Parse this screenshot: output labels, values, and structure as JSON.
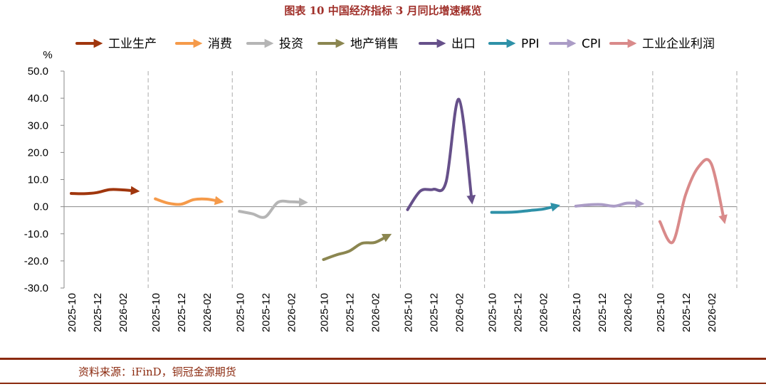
{
  "title": "图表 10  中国经济指标 3 月同比增速概览",
  "source": "资料来源：iFinD，铜冠金源期货",
  "chart_data": {
    "type": "line",
    "y_unit": "%",
    "ylim": [
      -30,
      50
    ],
    "y_ticks": [
      "50.0",
      "40.0",
      "30.0",
      "20.0",
      "10.0",
      "0.0",
      "-10.0",
      "-20.0",
      "-30.0"
    ],
    "panel_x_labels": [
      "2025-10",
      "2025-12",
      "2026-02"
    ],
    "legend_position": "top",
    "series": [
      {
        "name": "工业生产",
        "color": "#a0360d",
        "values": [
          4.9,
          4.8,
          5.2,
          6.3,
          6.2,
          5.8
        ]
      },
      {
        "name": "消费",
        "color": "#f59a4a",
        "values": [
          2.9,
          1.3,
          0.9,
          2.6,
          2.8,
          2.0
        ]
      },
      {
        "name": "投资",
        "color": "#b5b5b5",
        "values": [
          -1.7,
          -2.6,
          -3.8,
          1.6,
          1.8,
          1.6
        ]
      },
      {
        "name": "地产销售",
        "color": "#8b8650",
        "values": [
          -19.5,
          -17.8,
          -16.4,
          -13.5,
          -13.2,
          -10.8
        ]
      },
      {
        "name": "出口",
        "color": "#66508a",
        "values": [
          -1.1,
          5.8,
          6.4,
          9.1,
          39.6,
          2.5
        ]
      },
      {
        "name": "PPI",
        "color": "#2e91a8",
        "values": [
          -2.1,
          -2.1,
          -1.9,
          -1.4,
          -0.9,
          0.2
        ]
      },
      {
        "name": "CPI",
        "color": "#ab9cc6",
        "values": [
          0.2,
          0.7,
          0.8,
          0.2,
          1.3,
          1.1
        ]
      },
      {
        "name": "工业企业利润",
        "color": "#d98a8a",
        "values": [
          -5.5,
          -13.1,
          4.3,
          14.6,
          15.9,
          -4.8
        ]
      }
    ]
  }
}
